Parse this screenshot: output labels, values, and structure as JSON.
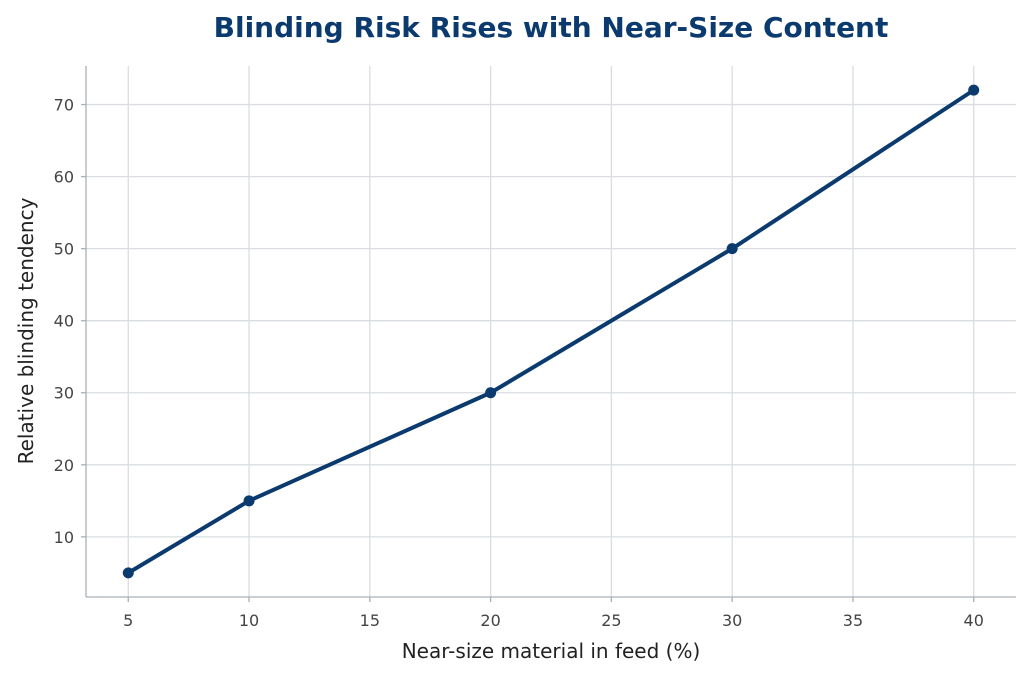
{
  "chart_data": {
    "type": "line",
    "title": "Blinding Risk Rises with Near-Size Content",
    "xlabel": "Near-size material in feed (%)",
    "ylabel": "Relative blinding tendency",
    "x": [
      5,
      10,
      20,
      30,
      40
    ],
    "series": [
      {
        "values": [
          5,
          15,
          30,
          50,
          72
        ]
      }
    ],
    "xlim": [
      3.25,
      41.75
    ],
    "ylim": [
      1.65,
      75.35
    ],
    "xticks": [
      5,
      10,
      15,
      20,
      25,
      30,
      35,
      40
    ],
    "yticks": [
      10,
      20,
      30,
      40,
      50,
      60,
      70
    ],
    "grid": true,
    "colors": {
      "line": "#0b3a6e",
      "title": "#0b3a6e"
    }
  }
}
